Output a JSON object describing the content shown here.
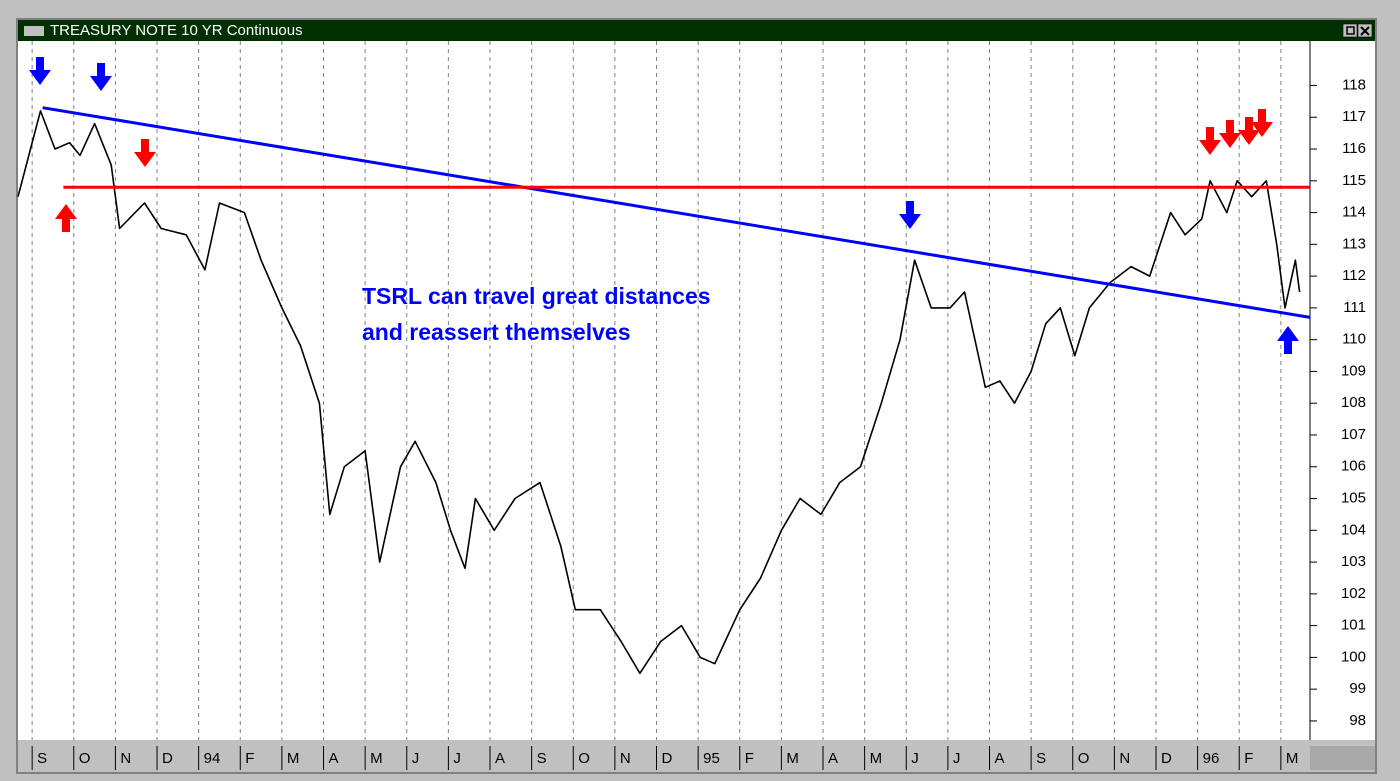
{
  "chart_data": {
    "type": "line",
    "title": "TREASURY NOTE 10 YR Continuous",
    "annotations": [
      "TSRL can travel great distances",
      "and reassert themselves"
    ],
    "xlim": [
      -0.34,
      30.7
    ],
    "xticks": [
      {
        "value": 0,
        "label": "S"
      },
      {
        "value": 1,
        "label": "O"
      },
      {
        "value": 2,
        "label": "N"
      },
      {
        "value": 3,
        "label": "D"
      },
      {
        "value": 4,
        "label": "94"
      },
      {
        "value": 5,
        "label": "F"
      },
      {
        "value": 6,
        "label": "M"
      },
      {
        "value": 7,
        "label": "A"
      },
      {
        "value": 8,
        "label": "M"
      },
      {
        "value": 9,
        "label": "J"
      },
      {
        "value": 10,
        "label": "J"
      },
      {
        "value": 11,
        "label": "A"
      },
      {
        "value": 12,
        "label": "S"
      },
      {
        "value": 13,
        "label": "O"
      },
      {
        "value": 14,
        "label": "N"
      },
      {
        "value": 15,
        "label": "D"
      },
      {
        "value": 16,
        "label": "95"
      },
      {
        "value": 17,
        "label": "F"
      },
      {
        "value": 18,
        "label": "M"
      },
      {
        "value": 19,
        "label": "A"
      },
      {
        "value": 20,
        "label": "M"
      },
      {
        "value": 21,
        "label": "J"
      },
      {
        "value": 22,
        "label": "J"
      },
      {
        "value": 23,
        "label": "A"
      },
      {
        "value": 24,
        "label": "S"
      },
      {
        "value": 25,
        "label": "O"
      },
      {
        "value": 26,
        "label": "N"
      },
      {
        "value": 27,
        "label": "D"
      },
      {
        "value": 28,
        "label": "96"
      },
      {
        "value": 29,
        "label": "F"
      },
      {
        "value": 30,
        "label": "M"
      }
    ],
    "ylim": [
      97.4,
      119.4
    ],
    "yticks": [
      98,
      99,
      100,
      101,
      102,
      103,
      104,
      105,
      106,
      107,
      108,
      109,
      110,
      111,
      112,
      113,
      114,
      115,
      116,
      117,
      118
    ],
    "grid": "x",
    "series": [
      {
        "color": "#000000",
        "x": [
          -0.34,
          0.2,
          0.55,
          0.9,
          1.15,
          1.5,
          1.9,
          2.1,
          2.7,
          3.1,
          3.7,
          4.15,
          4.5,
          5.1,
          5.5,
          6.0,
          6.45,
          6.9,
          7.15,
          7.5,
          8.0,
          8.35,
          8.85,
          9.2,
          9.7,
          10.05,
          10.4,
          10.65,
          11.1,
          11.6,
          12.2,
          12.7,
          13.05,
          13.65,
          14.15,
          14.6,
          15.1,
          15.6,
          16.05,
          16.4,
          17.0,
          17.5,
          18.0,
          18.45,
          18.95,
          19.4,
          19.9,
          20.4,
          20.85,
          21.2,
          21.6,
          22.05,
          22.4,
          22.9,
          23.25,
          23.6,
          24.0,
          24.35,
          24.7,
          25.05,
          25.4,
          25.9,
          26.4,
          26.85,
          27.35,
          27.7,
          28.1,
          28.3,
          28.7,
          28.95,
          29.3,
          29.65,
          29.9,
          30.1,
          30.35,
          30.45
        ],
        "values": [
          114.5,
          117.2,
          116,
          116.2,
          115.8,
          116.8,
          115.5,
          113.5,
          114.3,
          113.5,
          113.3,
          112.2,
          114.3,
          114,
          112.5,
          111,
          109.8,
          108,
          104.5,
          106,
          106.5,
          103,
          106,
          106.8,
          105.5,
          104,
          102.8,
          105,
          104,
          105,
          105.5,
          103.5,
          101.5,
          101.5,
          100.5,
          99.5,
          100.5,
          101,
          100,
          99.8,
          101.5,
          102.5,
          104,
          105,
          104.5,
          105.5,
          106,
          108,
          110,
          112.5,
          111,
          111,
          111.5,
          108.5,
          108.7,
          108,
          109,
          110.5,
          111,
          109.5,
          111,
          111.8,
          112.3,
          112,
          114,
          113.3,
          113.8,
          115,
          114,
          115,
          114.5,
          115,
          113,
          111,
          112.5,
          111.5
        ]
      }
    ],
    "trendlines": [
      {
        "color": "#0000ff",
        "x": [
          0.25,
          30.7
        ],
        "values": [
          117.3,
          110.7
        ]
      },
      {
        "color": "#ff0000",
        "x": [
          0.75,
          30.7
        ],
        "values": [
          114.8,
          114.8
        ]
      }
    ]
  }
}
